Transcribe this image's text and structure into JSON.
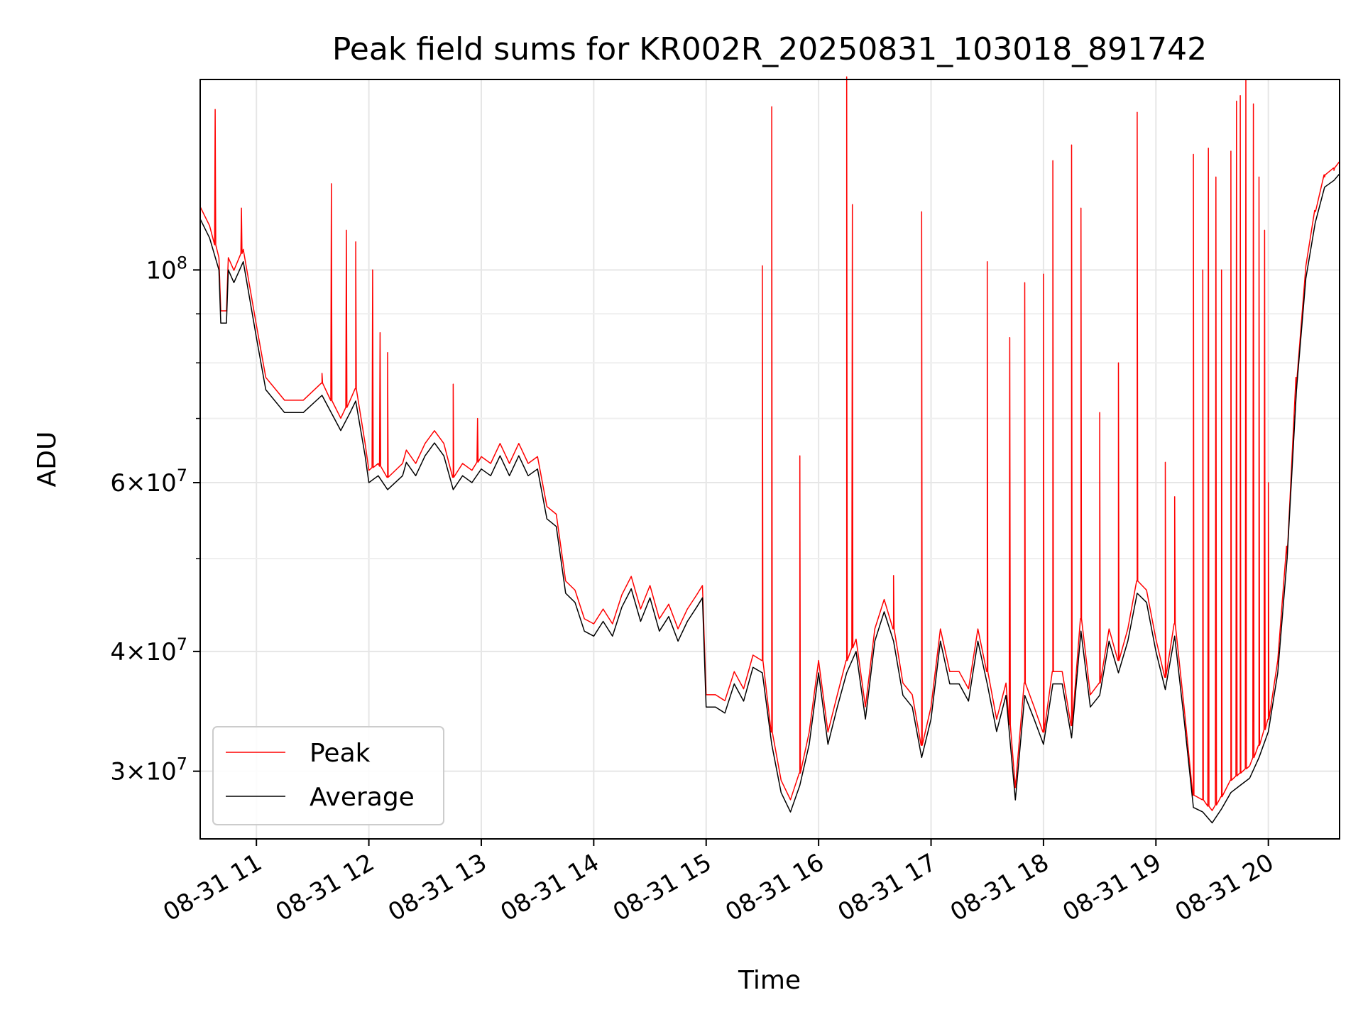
{
  "chart_data": {
    "type": "line",
    "title": "Peak field sums for KR002R_20250831_103018_891742",
    "xlabel": "Time",
    "ylabel": "ADU",
    "y_scale": "log",
    "ylim": [
      25500000,
      158000000
    ],
    "xlim": [
      "2025-08-31 10:30",
      "2025-08-31 20:38"
    ],
    "grid": true,
    "legend_position": "lower-left",
    "x_ticks": [
      {
        "t": "2025-08-31 11:00",
        "label": "08-31 11"
      },
      {
        "t": "2025-08-31 12:00",
        "label": "08-31 12"
      },
      {
        "t": "2025-08-31 13:00",
        "label": "08-31 13"
      },
      {
        "t": "2025-08-31 14:00",
        "label": "08-31 14"
      },
      {
        "t": "2025-08-31 15:00",
        "label": "08-31 15"
      },
      {
        "t": "2025-08-31 16:00",
        "label": "08-31 16"
      },
      {
        "t": "2025-08-31 17:00",
        "label": "08-31 17"
      },
      {
        "t": "2025-08-31 18:00",
        "label": "08-31 18"
      },
      {
        "t": "2025-08-31 19:00",
        "label": "08-31 19"
      },
      {
        "t": "2025-08-31 20:00",
        "label": "08-31 20"
      }
    ],
    "y_ticks_major": [
      {
        "value": 30000000,
        "label_mant": "3×10",
        "label_exp": "7"
      },
      {
        "value": 40000000,
        "label_mant": "4×10",
        "label_exp": "7"
      },
      {
        "value": 60000000,
        "label_mant": "6×10",
        "label_exp": "7"
      },
      {
        "value": 100000000,
        "label_mant": "10",
        "label_exp": "8"
      }
    ],
    "y_ticks_minor": [
      50000000,
      70000000,
      80000000,
      90000000
    ],
    "series": [
      {
        "name": "Average",
        "color": "#000000",
        "points": [
          [
            "10:30",
            113000000
          ],
          [
            "10:35",
            108000000
          ],
          [
            "10:40",
            100000000
          ],
          [
            "10:41",
            88000000
          ],
          [
            "10:44",
            88000000
          ],
          [
            "10:45",
            100000000
          ],
          [
            "10:48",
            97000000
          ],
          [
            "10:53",
            102000000
          ],
          [
            "11:00",
            85000000
          ],
          [
            "11:05",
            75000000
          ],
          [
            "11:15",
            71000000
          ],
          [
            "11:25",
            71000000
          ],
          [
            "11:35",
            74000000
          ],
          [
            "11:45",
            68000000
          ],
          [
            "11:50",
            71000000
          ],
          [
            "11:53",
            73000000
          ],
          [
            "11:58",
            64000000
          ],
          [
            "12:00",
            60000000
          ],
          [
            "12:05",
            61000000
          ],
          [
            "12:10",
            59000000
          ],
          [
            "12:18",
            61000000
          ],
          [
            "12:20",
            63000000
          ],
          [
            "12:25",
            61000000
          ],
          [
            "12:30",
            64000000
          ],
          [
            "12:35",
            66000000
          ],
          [
            "12:40",
            64000000
          ],
          [
            "12:45",
            59000000
          ],
          [
            "12:50",
            61000000
          ],
          [
            "12:55",
            60000000
          ],
          [
            "13:00",
            62000000
          ],
          [
            "13:05",
            61000000
          ],
          [
            "13:10",
            64000000
          ],
          [
            "13:15",
            61000000
          ],
          [
            "13:20",
            64000000
          ],
          [
            "13:25",
            61000000
          ],
          [
            "13:30",
            62000000
          ],
          [
            "13:35",
            55000000
          ],
          [
            "13:40",
            54000000
          ],
          [
            "13:45",
            46000000
          ],
          [
            "13:50",
            45000000
          ],
          [
            "13:55",
            42000000
          ],
          [
            "14:00",
            41500000
          ],
          [
            "14:05",
            43000000
          ],
          [
            "14:10",
            41500000
          ],
          [
            "14:15",
            44500000
          ],
          [
            "14:20",
            46500000
          ],
          [
            "14:25",
            43000000
          ],
          [
            "14:30",
            45500000
          ],
          [
            "14:35",
            42000000
          ],
          [
            "14:40",
            43500000
          ],
          [
            "14:45",
            41000000
          ],
          [
            "14:50",
            43000000
          ],
          [
            "14:55",
            44500000
          ],
          [
            "14:58",
            45500000
          ],
          [
            "15:00",
            35000000
          ],
          [
            "15:05",
            35000000
          ],
          [
            "15:10",
            34500000
          ],
          [
            "15:15",
            37000000
          ],
          [
            "15:20",
            35500000
          ],
          [
            "15:25",
            38500000
          ],
          [
            "15:30",
            38000000
          ],
          [
            "15:35",
            32000000
          ],
          [
            "15:40",
            28500000
          ],
          [
            "15:45",
            27200000
          ],
          [
            "15:50",
            29000000
          ],
          [
            "15:55",
            32000000
          ],
          [
            "16:00",
            38000000
          ],
          [
            "16:05",
            32000000
          ],
          [
            "16:10",
            35000000
          ],
          [
            "16:15",
            38000000
          ],
          [
            "16:20",
            40000000
          ],
          [
            "16:25",
            34000000
          ],
          [
            "16:30",
            41000000
          ],
          [
            "16:35",
            44000000
          ],
          [
            "16:40",
            41000000
          ],
          [
            "16:45",
            36000000
          ],
          [
            "16:50",
            35000000
          ],
          [
            "16:55",
            31000000
          ],
          [
            "17:00",
            34000000
          ],
          [
            "17:05",
            41000000
          ],
          [
            "17:10",
            37000000
          ],
          [
            "17:15",
            37000000
          ],
          [
            "17:20",
            35500000
          ],
          [
            "17:25",
            41000000
          ],
          [
            "17:30",
            37000000
          ],
          [
            "17:35",
            33000000
          ],
          [
            "17:40",
            36000000
          ],
          [
            "17:45",
            28000000
          ],
          [
            "17:50",
            36000000
          ],
          [
            "17:55",
            34000000
          ],
          [
            "18:00",
            32000000
          ],
          [
            "18:05",
            37000000
          ],
          [
            "18:10",
            37000000
          ],
          [
            "18:15",
            32500000
          ],
          [
            "18:20",
            42000000
          ],
          [
            "18:25",
            35000000
          ],
          [
            "18:30",
            36000000
          ],
          [
            "18:35",
            41000000
          ],
          [
            "18:40",
            38000000
          ],
          [
            "18:45",
            41000000
          ],
          [
            "18:50",
            46000000
          ],
          [
            "18:55",
            45000000
          ],
          [
            "19:00",
            40000000
          ],
          [
            "19:05",
            36500000
          ],
          [
            "19:10",
            41500000
          ],
          [
            "19:15",
            34000000
          ],
          [
            "19:20",
            27500000
          ],
          [
            "19:25",
            27200000
          ],
          [
            "19:30",
            26500000
          ],
          [
            "19:35",
            27400000
          ],
          [
            "19:40",
            28500000
          ],
          [
            "19:45",
            29000000
          ],
          [
            "19:50",
            29500000
          ],
          [
            "19:55",
            31000000
          ],
          [
            "20:00",
            33000000
          ],
          [
            "20:05",
            38000000
          ],
          [
            "20:10",
            50000000
          ],
          [
            "20:15",
            75000000
          ],
          [
            "20:20",
            98000000
          ],
          [
            "20:25",
            112000000
          ],
          [
            "20:30",
            122000000
          ],
          [
            "20:35",
            124000000
          ],
          [
            "20:38",
            126000000
          ]
        ]
      },
      {
        "name": "Peak",
        "color": "#ff0000",
        "spikes": [
          [
            "10:38",
            147000000
          ],
          [
            "10:52",
            116000000
          ],
          [
            "11:35",
            78000000
          ],
          [
            "11:40",
            123000000
          ],
          [
            "11:48",
            110000000
          ],
          [
            "11:53",
            107000000
          ],
          [
            "12:02",
            100000000
          ],
          [
            "12:06",
            86000000
          ],
          [
            "12:10",
            82000000
          ],
          [
            "12:45",
            76000000
          ],
          [
            "12:58",
            70000000
          ],
          [
            "15:30",
            101000000
          ],
          [
            "15:35",
            148000000
          ],
          [
            "15:50",
            64000000
          ],
          [
            "16:15",
            159000000
          ],
          [
            "16:18",
            117000000
          ],
          [
            "16:40",
            48000000
          ],
          [
            "16:55",
            115000000
          ],
          [
            "17:30",
            102000000
          ],
          [
            "17:42",
            85000000
          ],
          [
            "17:50",
            97000000
          ],
          [
            "18:00",
            99000000
          ],
          [
            "18:05",
            130000000
          ],
          [
            "18:15",
            135000000
          ],
          [
            "18:20",
            116000000
          ],
          [
            "18:30",
            71000000
          ],
          [
            "18:40",
            80000000
          ],
          [
            "18:50",
            146000000
          ],
          [
            "19:05",
            63000000
          ],
          [
            "19:10",
            58000000
          ],
          [
            "19:20",
            132000000
          ],
          [
            "19:25",
            100000000
          ],
          [
            "19:28",
            134000000
          ],
          [
            "19:32",
            125000000
          ],
          [
            "19:35",
            100000000
          ],
          [
            "19:40",
            133000000
          ],
          [
            "19:43",
            150000000
          ],
          [
            "19:45",
            152000000
          ],
          [
            "19:48",
            158000000
          ],
          [
            "19:52",
            149000000
          ],
          [
            "19:55",
            125000000
          ],
          [
            "19:58",
            110000000
          ],
          [
            "20:00",
            60000000
          ],
          [
            "20:10",
            50000000
          ],
          [
            "20:15",
            75000000
          ],
          [
            "20:25",
            115000000
          ],
          [
            "20:30",
            125000000
          ],
          [
            "20:35",
            127000000
          ]
        ]
      }
    ]
  }
}
